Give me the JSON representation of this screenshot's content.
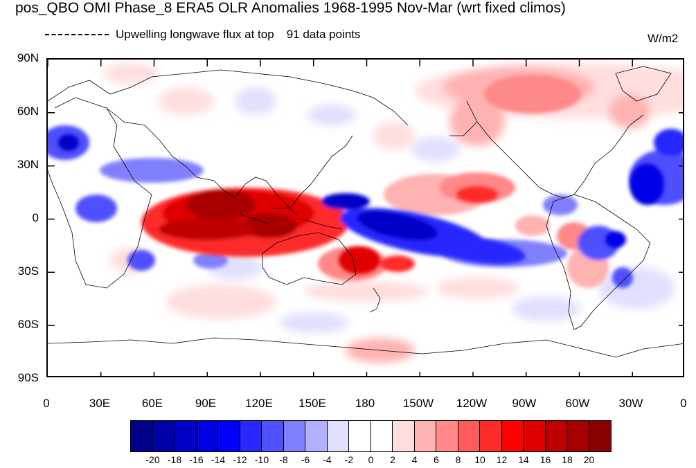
{
  "header": {
    "title": "pos_QBO OMI Phase_8 ERA5 OLR Anomalies 1968-1995 Nov-Mar (wrt fixed climos)",
    "legend_text": "Upwelling longwave flux at top",
    "points_text": "91 data points",
    "units": "W/m2"
  },
  "axes": {
    "lat_labels": [
      "90N",
      "60N",
      "30N",
      "0",
      "30S",
      "60S",
      "90S"
    ],
    "lon_labels": [
      "0",
      "30E",
      "60E",
      "90E",
      "120E",
      "150E",
      "180",
      "150W",
      "120W",
      "90W",
      "60W",
      "30W",
      "0"
    ]
  },
  "colorbar": {
    "colors": [
      "#00008b",
      "#0000a8",
      "#0000c8",
      "#0000e6",
      "#0000ff",
      "#2828ff",
      "#5050ff",
      "#8080ff",
      "#b0b0ff",
      "#e0e0ff",
      "#ffffff",
      "#ffffff",
      "#ffdede",
      "#ffb2b2",
      "#ff8888",
      "#ff5a5a",
      "#ff2a2a",
      "#ff0000",
      "#e00000",
      "#c00000",
      "#a80000",
      "#8b0000"
    ],
    "labels": [
      "-20",
      "-18",
      "-16",
      "-14",
      "-12",
      "-10",
      "-8",
      "-6",
      "-4",
      "-2",
      "0",
      "2",
      "4",
      "6",
      "8",
      "10",
      "12",
      "14",
      "16",
      "18",
      "20"
    ]
  },
  "colors": {
    "positive_strong": "#8b0000",
    "negative_strong": "#00008b",
    "coast": "#000000"
  }
}
